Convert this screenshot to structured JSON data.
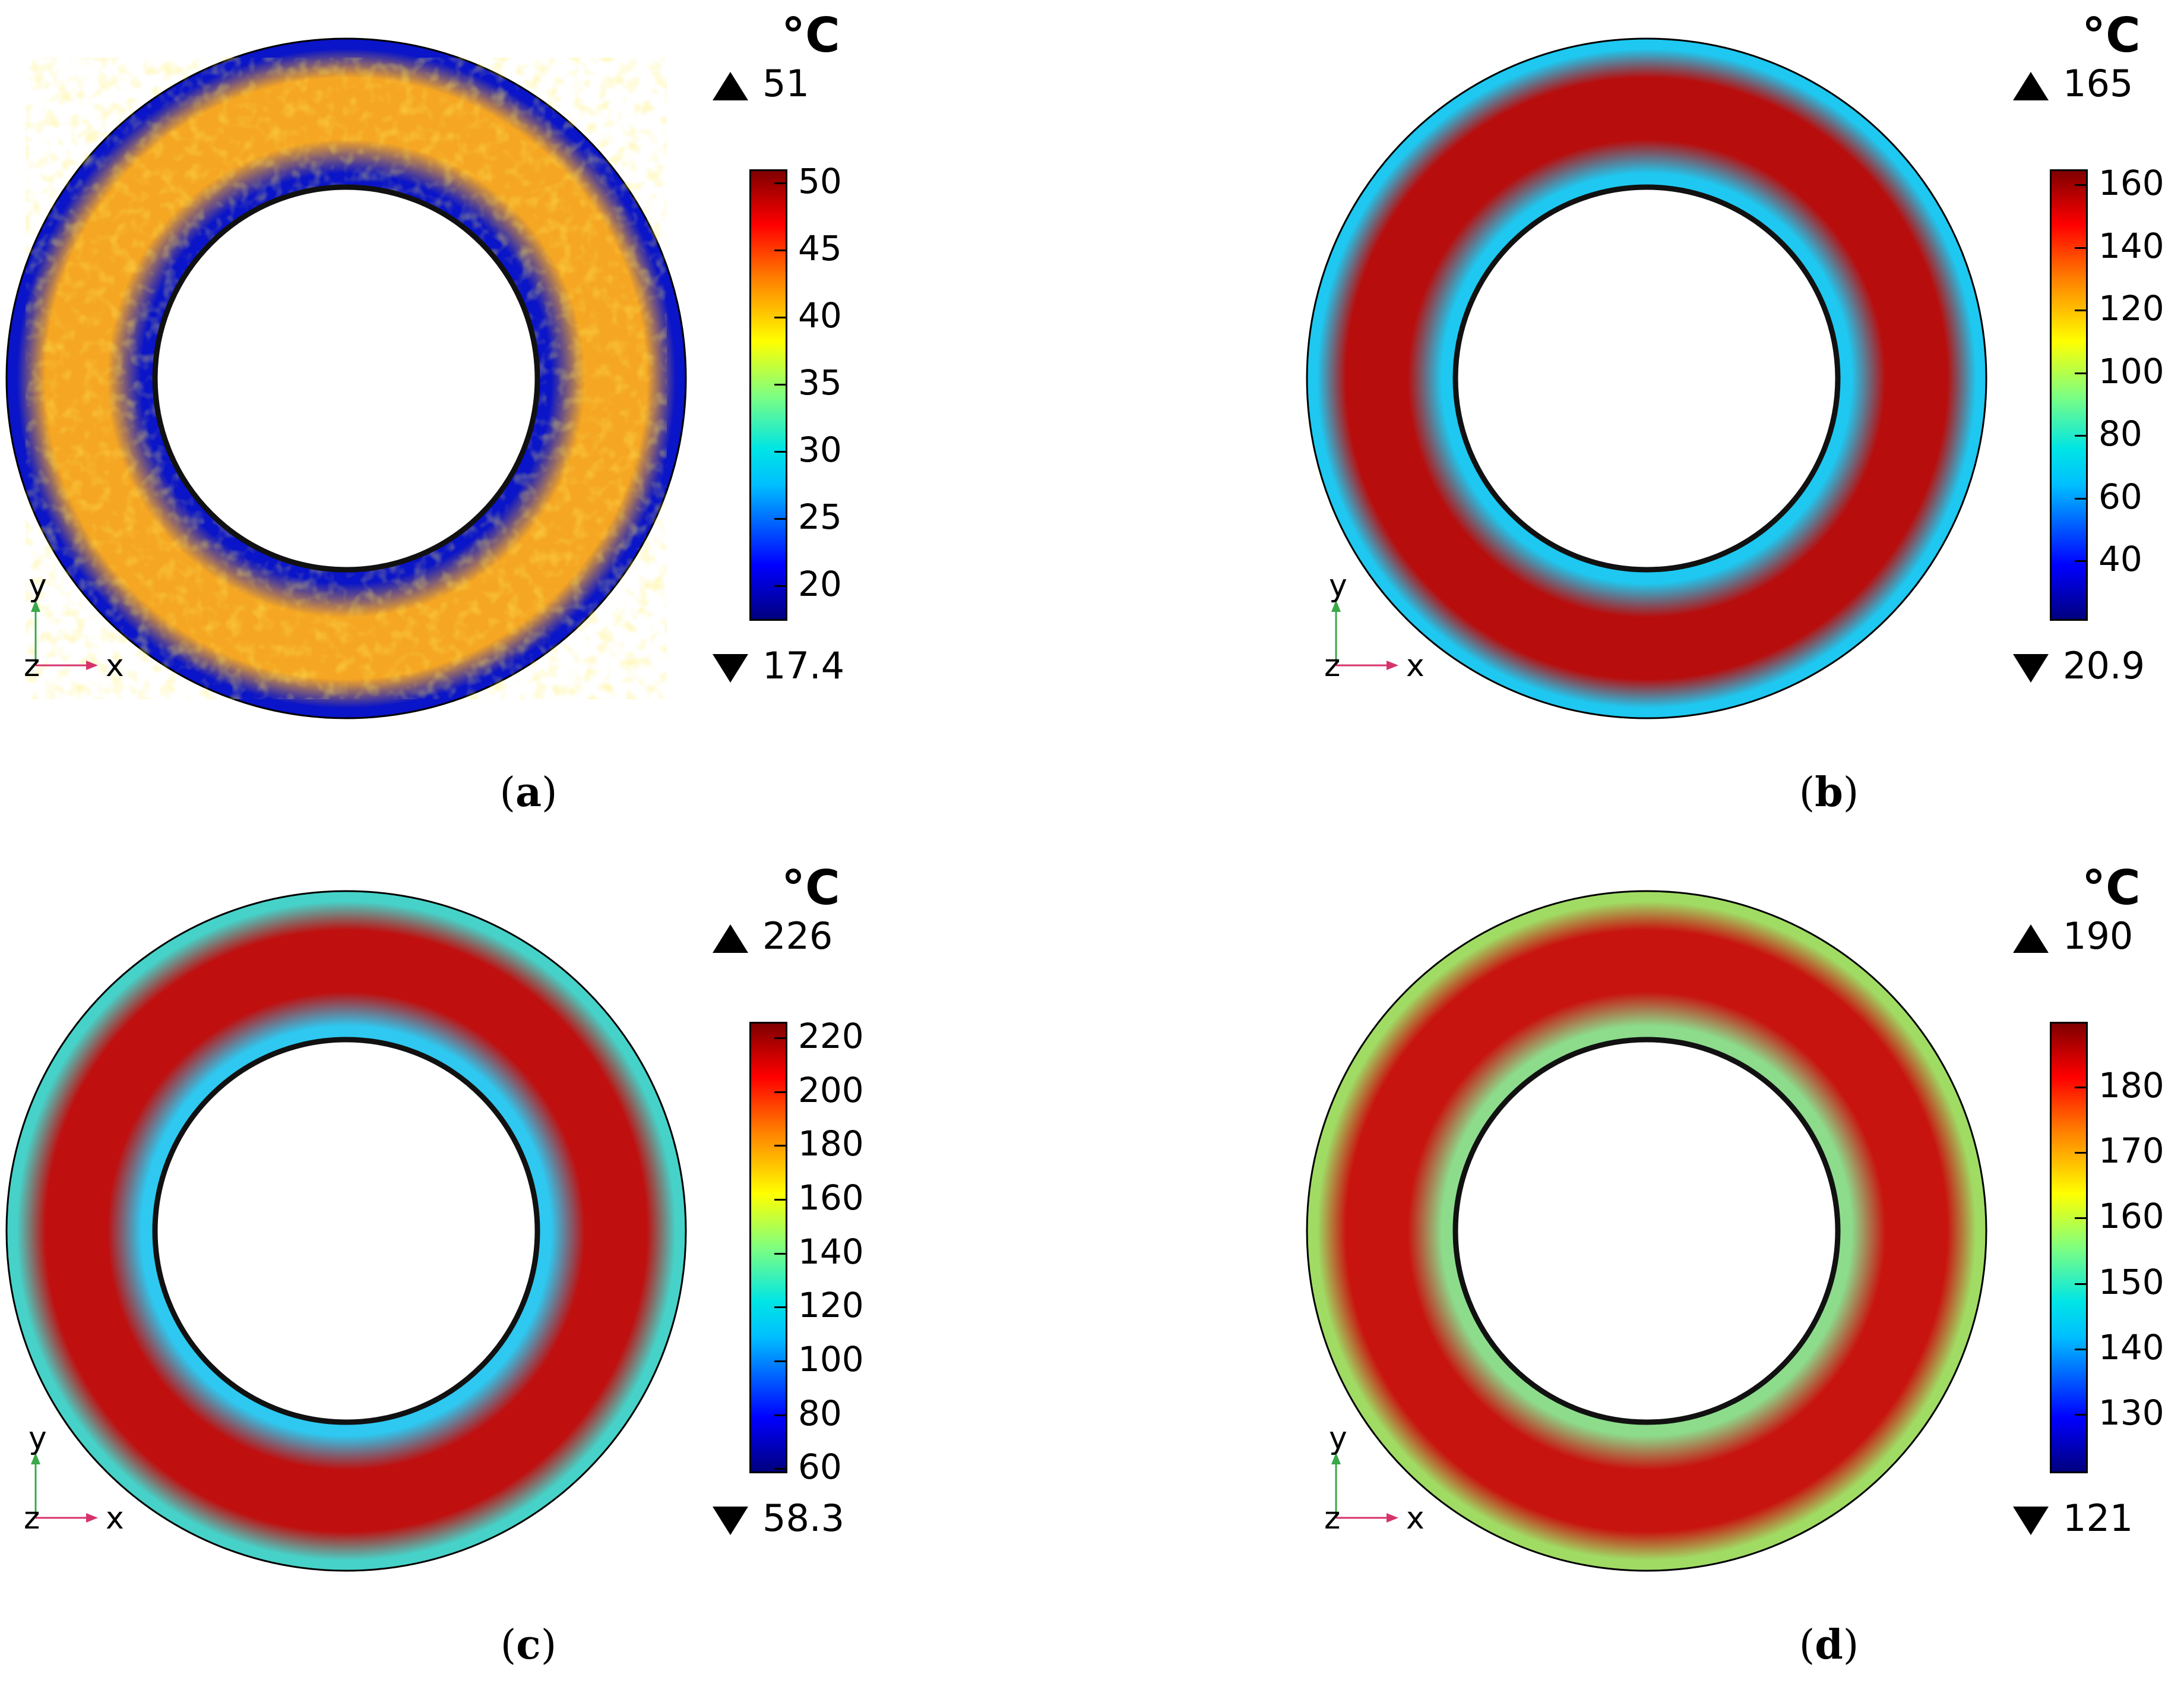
{
  "panels": [
    {
      "label": "a",
      "unit": "°C",
      "max": "51",
      "min": "17.4",
      "ticks": [
        "50",
        "45",
        "40",
        "35",
        "30",
        "25",
        "20"
      ],
      "tick_values": [
        50,
        45,
        40,
        35,
        30,
        25,
        20
      ],
      "range": [
        17.4,
        51
      ],
      "ring": {
        "outer_edge_color": "#0a14c8",
        "band_color": "#f5a623",
        "band_speckle": true,
        "inner_edge_color": "#0a14c8"
      }
    },
    {
      "label": "b",
      "unit": "°C",
      "max": "165",
      "min": "20.9",
      "ticks": [
        "160",
        "140",
        "120",
        "100",
        "80",
        "60",
        "40"
      ],
      "tick_values": [
        160,
        140,
        120,
        100,
        80,
        60,
        40
      ],
      "range": [
        20.9,
        165
      ],
      "ring": {
        "outer_edge_color": "#1ec8f0",
        "band_color": "#b80d0d",
        "band_speckle": false,
        "inner_edge_color": "#1ec8f0"
      }
    },
    {
      "label": "c",
      "unit": "°C",
      "max": "226",
      "min": "58.3",
      "ticks": [
        "220",
        "200",
        "180",
        "160",
        "140",
        "120",
        "100",
        "80",
        "60"
      ],
      "tick_values": [
        220,
        200,
        180,
        160,
        140,
        120,
        100,
        80,
        60
      ],
      "range": [
        58.3,
        226
      ],
      "ring": {
        "outer_edge_color": "#46d2c8",
        "band_color": "#bf0f0f",
        "band_speckle": false,
        "inner_edge_color": "#2ec8f0"
      }
    },
    {
      "label": "d",
      "unit": "°C",
      "max": "190",
      "min": "121",
      "ticks": [
        "180",
        "170",
        "160",
        "150",
        "140",
        "130"
      ],
      "tick_values": [
        180,
        170,
        160,
        150,
        140,
        130
      ],
      "range": [
        121,
        190
      ],
      "ring": {
        "outer_edge_color": "#a0dc64",
        "band_color": "#c8140f",
        "band_speckle": false,
        "inner_edge_color": "#8cdc8c"
      }
    }
  ],
  "axes": {
    "y": "y",
    "z": "z",
    "x": "x"
  }
}
